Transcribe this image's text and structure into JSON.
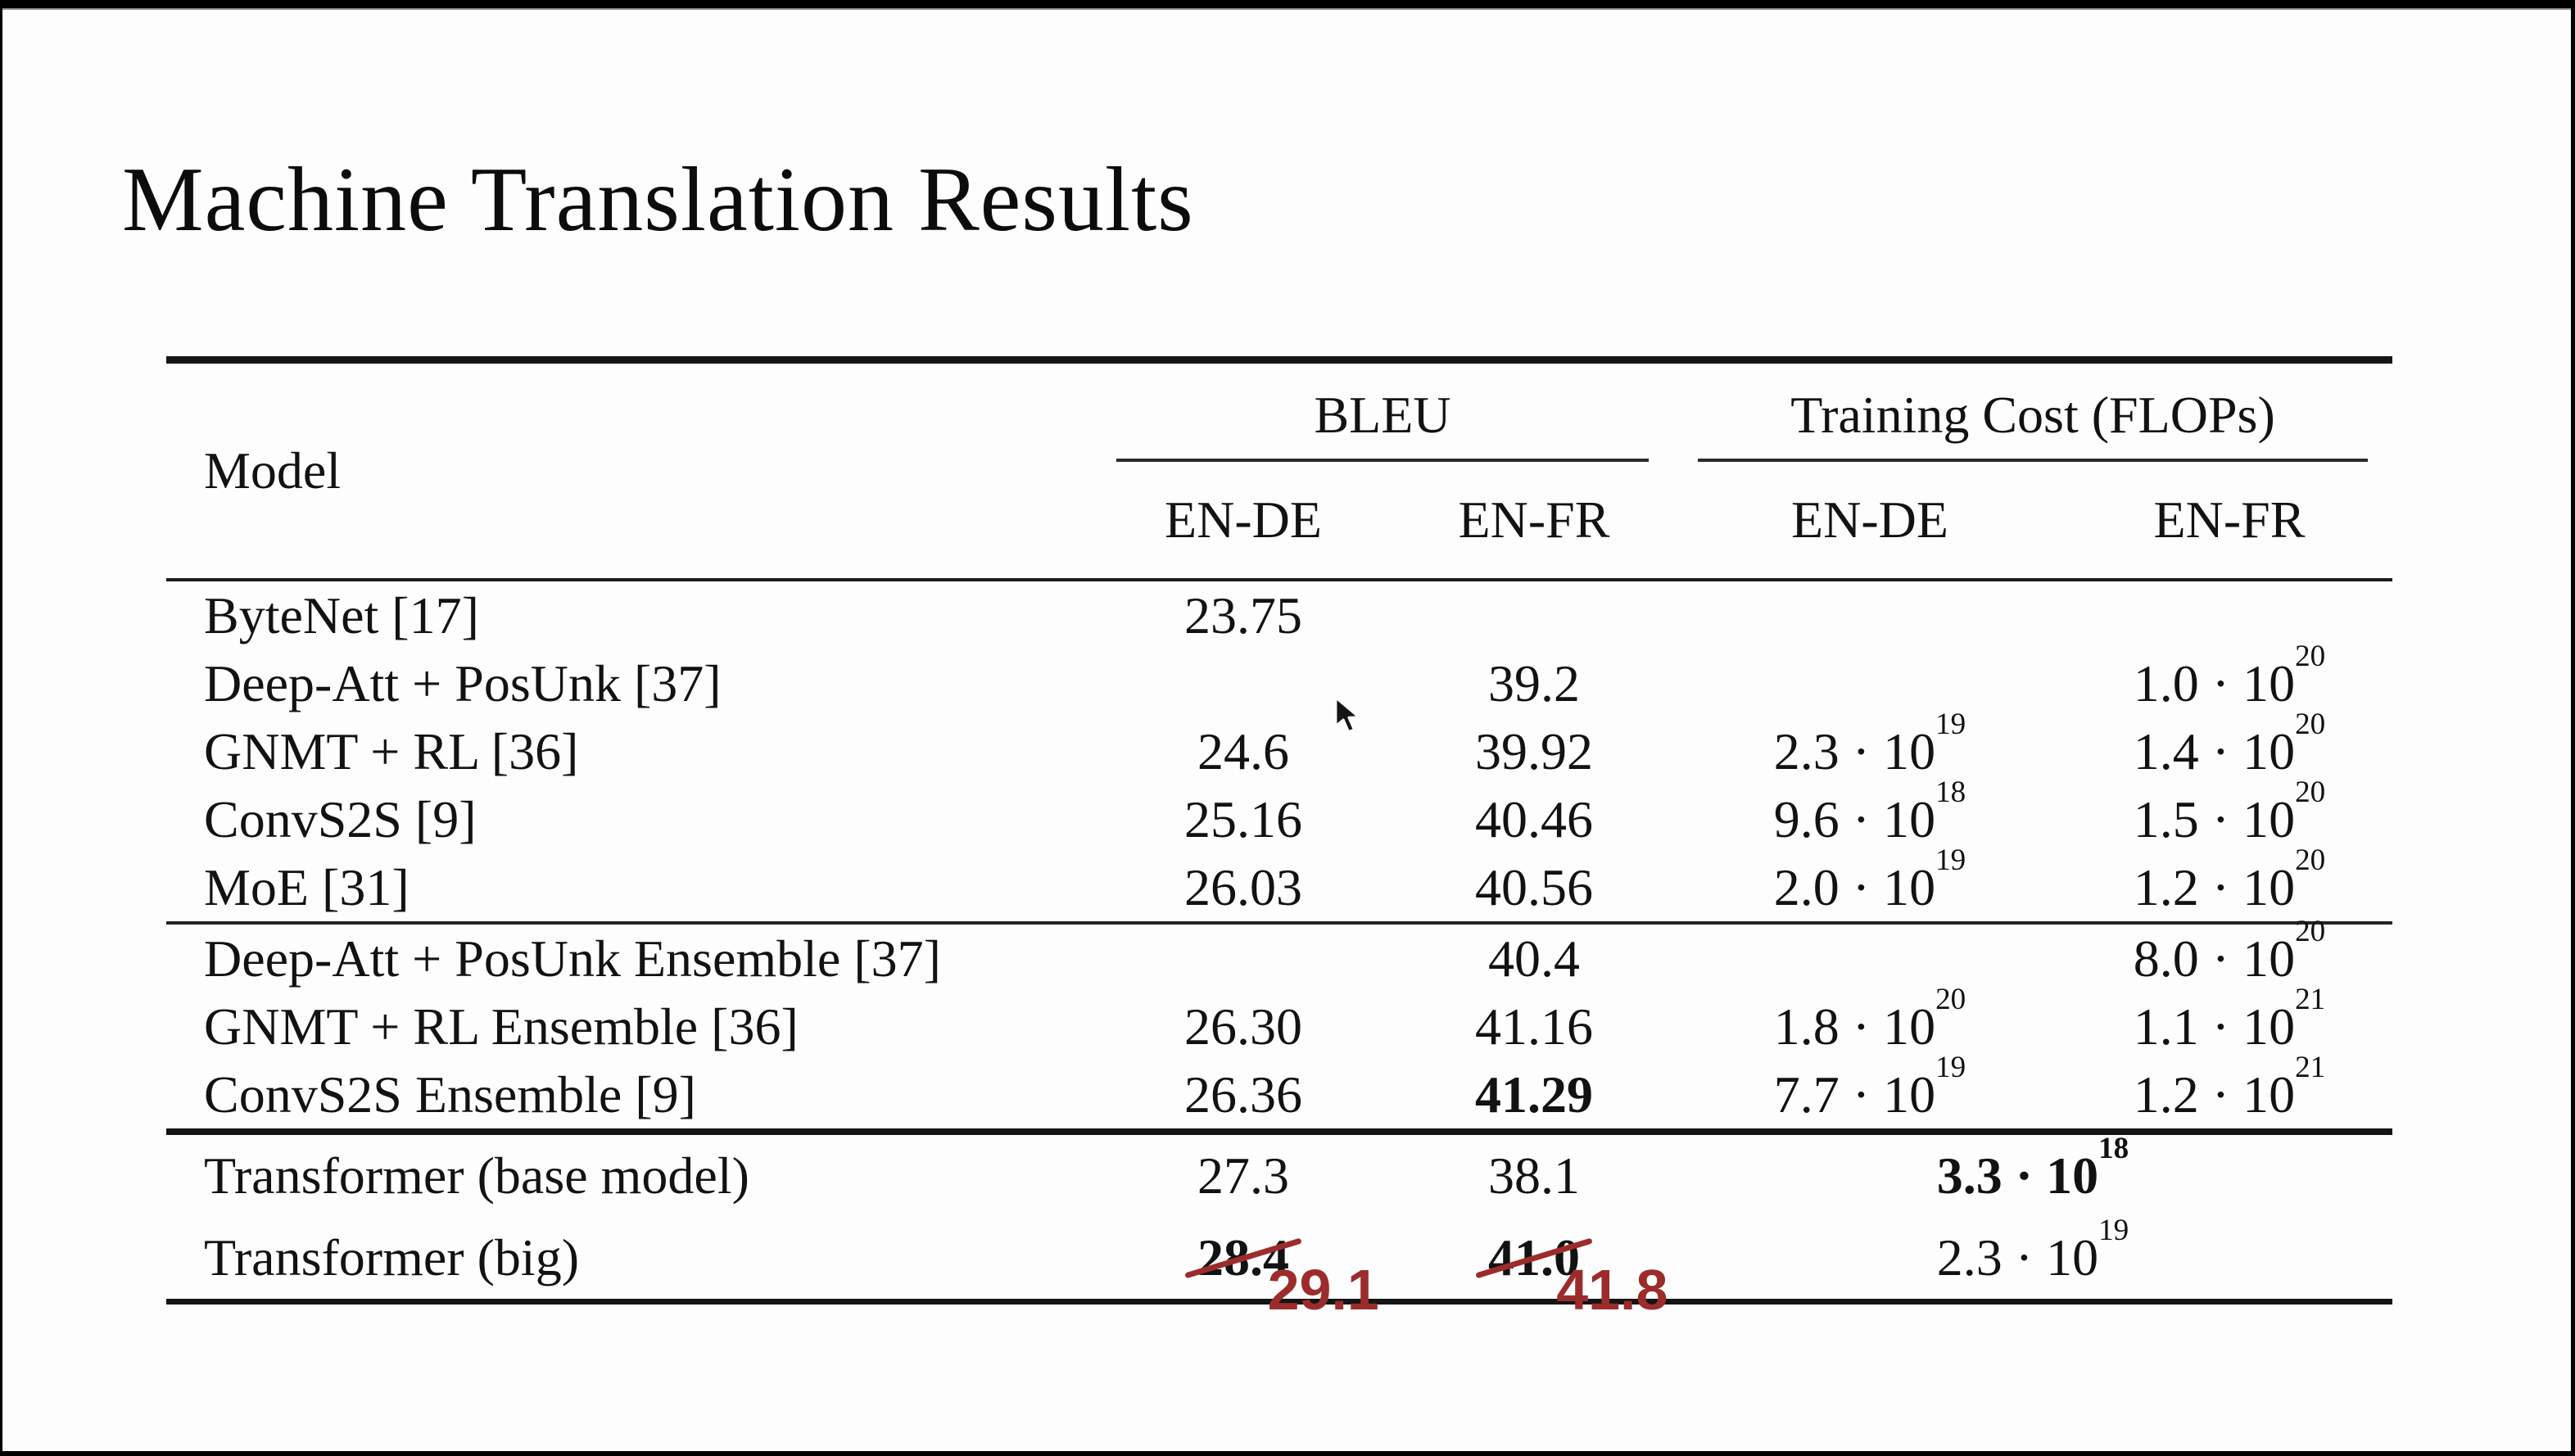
{
  "frame": {
    "background": "#000000"
  },
  "slide": {
    "title": "Machine Translation Results",
    "background": "#fdfdfd"
  },
  "table": {
    "model_header": "Model",
    "groups": [
      {
        "label": "BLEU",
        "subcolumns": [
          "EN-DE",
          "EN-FR"
        ]
      },
      {
        "label": "Training Cost (FLOPs)",
        "subcolumns": [
          "EN-DE",
          "EN-FR"
        ]
      }
    ],
    "sections": [
      {
        "rows": [
          {
            "model": "ByteNet [17]",
            "cells": [
              {
                "text": "23.75"
              },
              {
                "text": ""
              },
              {
                "text": ""
              },
              {
                "text": ""
              }
            ]
          },
          {
            "model": "Deep-Att + PosUnk [37]",
            "cells": [
              {
                "text": ""
              },
              {
                "text": "39.2"
              },
              {
                "text": ""
              },
              {
                "text": "1.0 · 10^20"
              }
            ]
          },
          {
            "model": "GNMT + RL [36]",
            "cells": [
              {
                "text": "24.6"
              },
              {
                "text": "39.92"
              },
              {
                "text": "2.3 · 10^19"
              },
              {
                "text": "1.4 · 10^20"
              }
            ]
          },
          {
            "model": "ConvS2S [9]",
            "cells": [
              {
                "text": "25.16"
              },
              {
                "text": "40.46"
              },
              {
                "text": "9.6 · 10^18"
              },
              {
                "text": "1.5 · 10^20"
              }
            ]
          },
          {
            "model": "MoE [31]",
            "cells": [
              {
                "text": "26.03"
              },
              {
                "text": "40.56"
              },
              {
                "text": "2.0 · 10^19"
              },
              {
                "text": "1.2 · 10^20"
              }
            ]
          }
        ]
      },
      {
        "rows": [
          {
            "model": "Deep-Att + PosUnk Ensemble [37]",
            "cells": [
              {
                "text": ""
              },
              {
                "text": "40.4"
              },
              {
                "text": ""
              },
              {
                "text": "8.0 · 10^20"
              }
            ]
          },
          {
            "model": "GNMT + RL Ensemble [36]",
            "cells": [
              {
                "text": "26.30"
              },
              {
                "text": "41.16"
              },
              {
                "text": "1.8 · 10^20"
              },
              {
                "text": "1.1 · 10^21"
              }
            ]
          },
          {
            "model": "ConvS2S Ensemble [9]",
            "cells": [
              {
                "text": "26.36"
              },
              {
                "text": "41.29",
                "bold": true
              },
              {
                "text": "7.7 · 10^19"
              },
              {
                "text": "1.2 · 10^21"
              }
            ]
          }
        ]
      },
      {
        "rows": [
          {
            "model": "Transformer (base model)",
            "cells": [
              {
                "text": "27.3"
              },
              {
                "text": "38.1"
              },
              {
                "text": "3.3 · 10^18",
                "bold": true,
                "span": 2
              }
            ]
          },
          {
            "model": "Transformer (big)",
            "cells": [
              {
                "text": "28.4",
                "bold": true,
                "struck": true,
                "note": "29.1"
              },
              {
                "text": "41.0",
                "bold": true,
                "struck": true,
                "note": "41.8"
              },
              {
                "text": "2.3 · 10^19",
                "span": 2
              }
            ]
          }
        ]
      }
    ]
  },
  "annotations": {
    "ink_color": "#9c2c2c",
    "en_de_correction": "29.1",
    "en_fr_correction": "41.8"
  },
  "cursor": {
    "type": "arrow"
  }
}
